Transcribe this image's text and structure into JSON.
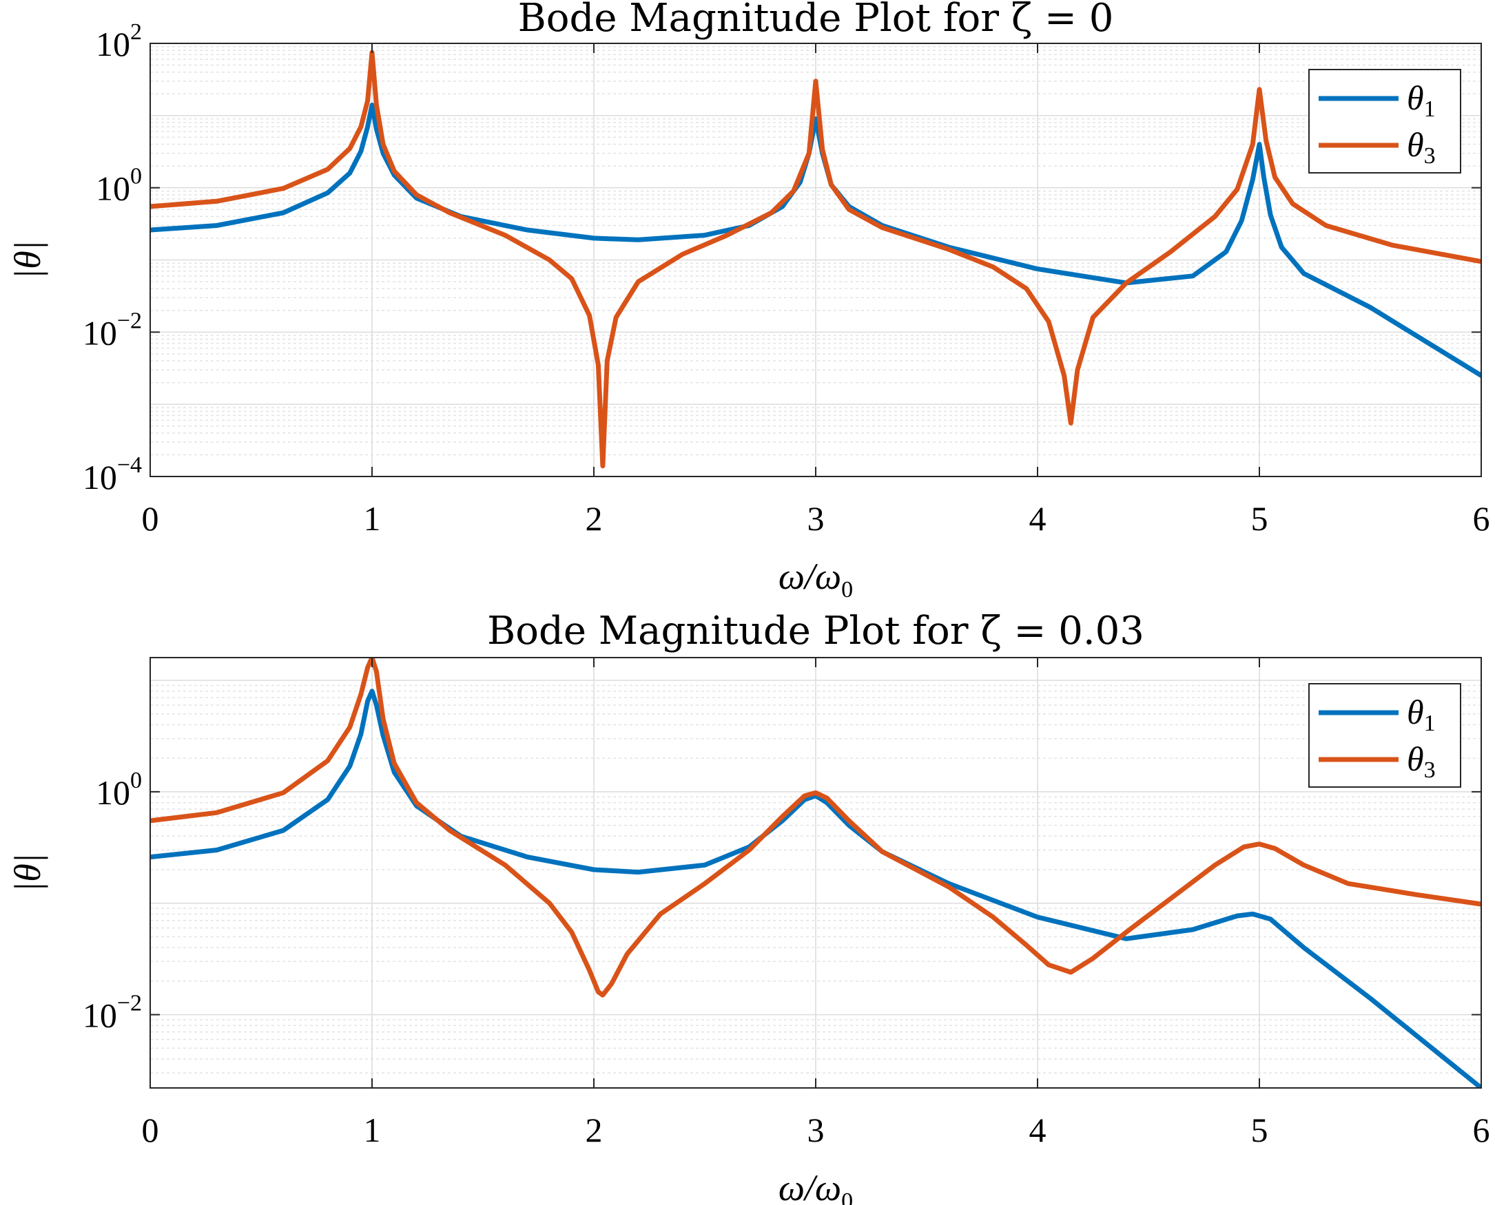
{
  "chart_data": [
    {
      "type": "line",
      "title": "Bode Magnitude Plot for ζ = 0",
      "xlabel": "ω/ω0",
      "ylabel": "|θ|",
      "xlim": [
        0,
        6
      ],
      "ylim": [
        0.0001,
        100
      ],
      "yscale": "log",
      "xticks": [
        0,
        1,
        2,
        3,
        4,
        5,
        6
      ],
      "yticks": [
        {
          "base": "10",
          "exp": "−4",
          "value": 0.0001
        },
        {
          "base": "10",
          "exp": "−2",
          "value": 0.01
        },
        {
          "base": "10",
          "exp": "0",
          "value": 1
        },
        {
          "base": "10",
          "exp": "2",
          "value": 100
        }
      ],
      "grid": true,
      "legend": "top-right",
      "series": [
        {
          "name": "θ1",
          "color": "#0072BD",
          "points": [
            [
              0,
              0.26
            ],
            [
              0.3,
              0.3
            ],
            [
              0.6,
              0.45
            ],
            [
              0.8,
              0.85
            ],
            [
              0.9,
              1.6
            ],
            [
              0.95,
              3.2
            ],
            [
              0.98,
              7
            ],
            [
              1.0,
              14
            ],
            [
              1.02,
              6.5
            ],
            [
              1.05,
              3
            ],
            [
              1.1,
              1.5
            ],
            [
              1.2,
              0.72
            ],
            [
              1.4,
              0.4
            ],
            [
              1.7,
              0.26
            ],
            [
              2.0,
              0.2
            ],
            [
              2.2,
              0.19
            ],
            [
              2.5,
              0.22
            ],
            [
              2.7,
              0.3
            ],
            [
              2.85,
              0.55
            ],
            [
              2.93,
              1.2
            ],
            [
              2.97,
              3
            ],
            [
              3.0,
              9
            ],
            [
              3.03,
              3
            ],
            [
              3.07,
              1.1
            ],
            [
              3.15,
              0.55
            ],
            [
              3.3,
              0.3
            ],
            [
              3.6,
              0.15
            ],
            [
              4.0,
              0.075
            ],
            [
              4.4,
              0.048
            ],
            [
              4.7,
              0.06
            ],
            [
              4.85,
              0.13
            ],
            [
              4.92,
              0.35
            ],
            [
              4.97,
              1.3
            ],
            [
              5.0,
              4
            ],
            [
              5.02,
              1.4
            ],
            [
              5.05,
              0.42
            ],
            [
              5.1,
              0.15
            ],
            [
              5.2,
              0.065
            ],
            [
              5.5,
              0.022
            ],
            [
              6.0,
              0.0025
            ]
          ]
        },
        {
          "name": "θ3",
          "color": "#D95319",
          "points": [
            [
              0,
              0.55
            ],
            [
              0.3,
              0.65
            ],
            [
              0.6,
              0.98
            ],
            [
              0.8,
              1.8
            ],
            [
              0.9,
              3.5
            ],
            [
              0.95,
              7
            ],
            [
              0.98,
              16
            ],
            [
              1.0,
              75
            ],
            [
              1.02,
              14
            ],
            [
              1.05,
              4
            ],
            [
              1.1,
              1.7
            ],
            [
              1.2,
              0.8
            ],
            [
              1.35,
              0.45
            ],
            [
              1.6,
              0.22
            ],
            [
              1.8,
              0.1
            ],
            [
              1.9,
              0.055
            ],
            [
              1.98,
              0.017
            ],
            [
              2.02,
              0.0035
            ],
            [
              2.04,
              0.00014
            ],
            [
              2.06,
              0.004
            ],
            [
              2.1,
              0.016
            ],
            [
              2.2,
              0.05
            ],
            [
              2.4,
              0.12
            ],
            [
              2.6,
              0.22
            ],
            [
              2.8,
              0.45
            ],
            [
              2.9,
              0.9
            ],
            [
              2.97,
              3
            ],
            [
              3.0,
              30
            ],
            [
              3.03,
              3.4
            ],
            [
              3.07,
              1.1
            ],
            [
              3.15,
              0.5
            ],
            [
              3.3,
              0.28
            ],
            [
              3.6,
              0.14
            ],
            [
              3.8,
              0.08
            ],
            [
              3.95,
              0.04
            ],
            [
              4.05,
              0.014
            ],
            [
              4.12,
              0.0025
            ],
            [
              4.15,
              0.00055
            ],
            [
              4.18,
              0.003
            ],
            [
              4.25,
              0.016
            ],
            [
              4.4,
              0.048
            ],
            [
              4.6,
              0.13
            ],
            [
              4.8,
              0.4
            ],
            [
              4.9,
              0.95
            ],
            [
              4.97,
              4
            ],
            [
              5.0,
              23
            ],
            [
              5.03,
              4.5
            ],
            [
              5.07,
              1.4
            ],
            [
              5.15,
              0.6
            ],
            [
              5.3,
              0.3
            ],
            [
              5.6,
              0.16
            ],
            [
              6.0,
              0.095
            ]
          ]
        }
      ]
    },
    {
      "type": "line",
      "title": "Bode Magnitude Plot for ζ = 0.03",
      "xlabel": "ω/ω0",
      "ylabel": "|θ|",
      "xlim": [
        0,
        6
      ],
      "ylim": [
        0.0022,
        16
      ],
      "yscale": "log",
      "xticks": [
        0,
        1,
        2,
        3,
        4,
        5,
        6
      ],
      "yticks": [
        {
          "base": "10",
          "exp": "−2",
          "value": 0.01
        },
        {
          "base": "10",
          "exp": "0",
          "value": 1
        }
      ],
      "grid": true,
      "legend": "top-right",
      "series": [
        {
          "name": "θ1",
          "color": "#0072BD",
          "points": [
            [
              0,
              0.26
            ],
            [
              0.3,
              0.3
            ],
            [
              0.6,
              0.45
            ],
            [
              0.8,
              0.85
            ],
            [
              0.9,
              1.7
            ],
            [
              0.95,
              3.3
            ],
            [
              0.98,
              6.5
            ],
            [
              1.0,
              8
            ],
            [
              1.02,
              6
            ],
            [
              1.05,
              3.2
            ],
            [
              1.1,
              1.5
            ],
            [
              1.2,
              0.75
            ],
            [
              1.4,
              0.4
            ],
            [
              1.7,
              0.26
            ],
            [
              2.0,
              0.2
            ],
            [
              2.2,
              0.19
            ],
            [
              2.5,
              0.22
            ],
            [
              2.7,
              0.32
            ],
            [
              2.85,
              0.55
            ],
            [
              2.95,
              0.85
            ],
            [
              3.0,
              0.92
            ],
            [
              3.05,
              0.8
            ],
            [
              3.15,
              0.5
            ],
            [
              3.3,
              0.29
            ],
            [
              3.6,
              0.15
            ],
            [
              4.0,
              0.075
            ],
            [
              4.4,
              0.048
            ],
            [
              4.7,
              0.058
            ],
            [
              4.9,
              0.077
            ],
            [
              4.97,
              0.08
            ],
            [
              5.05,
              0.072
            ],
            [
              5.2,
              0.04
            ],
            [
              5.5,
              0.014
            ],
            [
              6.0,
              0.0022
            ]
          ]
        },
        {
          "name": "θ3",
          "color": "#D95319",
          "points": [
            [
              0,
              0.55
            ],
            [
              0.3,
              0.65
            ],
            [
              0.6,
              0.98
            ],
            [
              0.8,
              1.9
            ],
            [
              0.9,
              3.8
            ],
            [
              0.95,
              7.5
            ],
            [
              0.98,
              13
            ],
            [
              1.0,
              16
            ],
            [
              1.02,
              12
            ],
            [
              1.05,
              4.5
            ],
            [
              1.1,
              1.8
            ],
            [
              1.2,
              0.8
            ],
            [
              1.35,
              0.45
            ],
            [
              1.6,
              0.22
            ],
            [
              1.8,
              0.1
            ],
            [
              1.9,
              0.055
            ],
            [
              1.98,
              0.025
            ],
            [
              2.02,
              0.016
            ],
            [
              2.04,
              0.015
            ],
            [
              2.08,
              0.019
            ],
            [
              2.15,
              0.035
            ],
            [
              2.3,
              0.08
            ],
            [
              2.5,
              0.15
            ],
            [
              2.7,
              0.3
            ],
            [
              2.85,
              0.6
            ],
            [
              2.95,
              0.92
            ],
            [
              3.0,
              0.98
            ],
            [
              3.05,
              0.88
            ],
            [
              3.15,
              0.55
            ],
            [
              3.3,
              0.29
            ],
            [
              3.6,
              0.14
            ],
            [
              3.8,
              0.075
            ],
            [
              3.95,
              0.042
            ],
            [
              4.05,
              0.028
            ],
            [
              4.15,
              0.024
            ],
            [
              4.25,
              0.032
            ],
            [
              4.4,
              0.055
            ],
            [
              4.6,
              0.11
            ],
            [
              4.8,
              0.22
            ],
            [
              4.93,
              0.32
            ],
            [
              5.0,
              0.34
            ],
            [
              5.07,
              0.31
            ],
            [
              5.2,
              0.22
            ],
            [
              5.4,
              0.15
            ],
            [
              5.7,
              0.12
            ],
            [
              6.0,
              0.098
            ]
          ]
        }
      ]
    }
  ]
}
